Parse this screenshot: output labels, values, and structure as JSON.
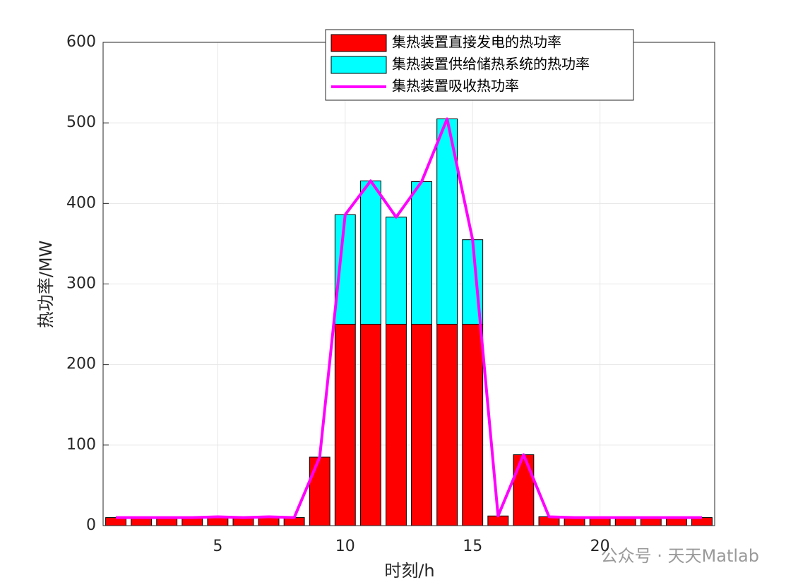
{
  "chart_data": {
    "type": "bar",
    "stacked": true,
    "x": [
      1,
      2,
      3,
      4,
      5,
      6,
      7,
      8,
      9,
      10,
      11,
      12,
      13,
      14,
      15,
      16,
      17,
      18,
      19,
      20,
      21,
      22,
      23,
      24
    ],
    "series": [
      {
        "name": "集热装置直接发电的热功率",
        "color": "#ff0000",
        "values": [
          10,
          10,
          10,
          10,
          11,
          10,
          11,
          10,
          85,
          250,
          250,
          250,
          250,
          250,
          250,
          12,
          88,
          11,
          10,
          10,
          10,
          10,
          10,
          10
        ]
      },
      {
        "name": "集热装置供给储热系统的热功率",
        "color": "#00ffff",
        "values": [
          0,
          0,
          0,
          0,
          0,
          0,
          0,
          0,
          0,
          136,
          178,
          133,
          177,
          255,
          105,
          0,
          0,
          0,
          0,
          0,
          0,
          0,
          0,
          0
        ]
      },
      {
        "name": "集热装置吸收热功率",
        "color": "#ff00ff",
        "type": "line",
        "values": [
          10,
          10,
          10,
          10,
          11,
          10,
          11,
          10,
          85,
          386,
          428,
          383,
          427,
          505,
          355,
          12,
          88,
          11,
          10,
          10,
          10,
          10,
          10,
          10
        ]
      }
    ],
    "x_label": "时刻/h",
    "y_label": "热功率/MW",
    "xlim": [
      0.5,
      24.5
    ],
    "xticks": [
      5,
      10,
      15,
      20
    ],
    "ylim": [
      0,
      600
    ],
    "yticks": [
      0,
      100,
      200,
      300,
      400,
      500,
      600
    ],
    "grid": true,
    "legend": "top-right",
    "watermark": "公众号 · 天天Matlab"
  }
}
